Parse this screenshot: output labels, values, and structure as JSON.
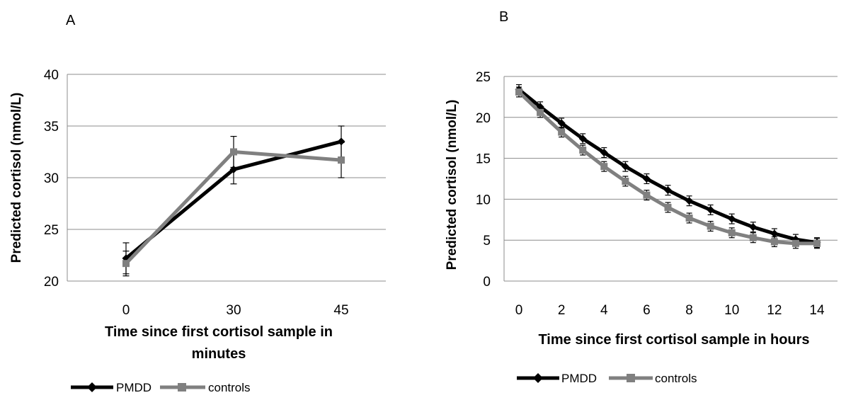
{
  "chart_data": [
    {
      "panel_label": "A",
      "type": "line",
      "categories": [
        "0",
        "30",
        "45"
      ],
      "series": [
        {
          "name": "PMDD",
          "color": "#000000",
          "marker": "diamond",
          "values": [
            22.2,
            30.8,
            33.5
          ],
          "errors": [
            1.5,
            1.4,
            1.5
          ]
        },
        {
          "name": "controls",
          "color": "#808080",
          "marker": "square",
          "values": [
            21.7,
            32.5,
            31.7
          ],
          "errors": [
            1.2,
            1.5,
            1.7
          ]
        }
      ],
      "y_ticks": [
        "20",
        "25",
        "30",
        "35",
        "40"
      ],
      "ylim": [
        20,
        40
      ],
      "ylabel": "Predicted cortisol (nmol/L)",
      "xlabel_lines": [
        "Time since first cortisol sample in",
        "minutes"
      ],
      "grid": "horizontal",
      "legend_position": "bottom-left"
    },
    {
      "panel_label": "B",
      "type": "line",
      "categories": [
        "0",
        "1",
        "2",
        "3",
        "4",
        "5",
        "6",
        "7",
        "8",
        "9",
        "10",
        "11",
        "12",
        "13",
        "14"
      ],
      "x_ticks": [
        "0",
        "2",
        "4",
        "6",
        "8",
        "10",
        "12",
        "14"
      ],
      "series": [
        {
          "name": "PMDD",
          "color": "#000000",
          "marker": "diamond",
          "values": [
            23.4,
            21.3,
            19.3,
            17.4,
            15.7,
            14.0,
            12.5,
            11.1,
            9.8,
            8.7,
            7.6,
            6.6,
            5.8,
            5.1,
            4.7
          ],
          "errors": [
            0.6,
            0.6,
            0.6,
            0.6,
            0.6,
            0.6,
            0.6,
            0.6,
            0.6,
            0.6,
            0.6,
            0.6,
            0.6,
            0.6,
            0.6
          ]
        },
        {
          "name": "controls",
          "color": "#808080",
          "marker": "square",
          "values": [
            23.1,
            20.6,
            18.2,
            16.0,
            14.0,
            12.2,
            10.5,
            9.0,
            7.7,
            6.7,
            5.9,
            5.3,
            4.8,
            4.6,
            4.6
          ],
          "errors": [
            0.6,
            0.6,
            0.6,
            0.6,
            0.6,
            0.6,
            0.6,
            0.6,
            0.6,
            0.6,
            0.6,
            0.6,
            0.6,
            0.6,
            0.6
          ]
        }
      ],
      "y_ticks": [
        "0",
        "5",
        "10",
        "15",
        "20",
        "25"
      ],
      "ylim": [
        0,
        25
      ],
      "xlim": [
        0,
        14
      ],
      "ylabel": "Predicted cortisol (nmol/L)",
      "xlabel_lines": [
        "Time since first cortisol sample in hours"
      ],
      "grid": "horizontal",
      "legend_position": "bottom-left"
    }
  ]
}
